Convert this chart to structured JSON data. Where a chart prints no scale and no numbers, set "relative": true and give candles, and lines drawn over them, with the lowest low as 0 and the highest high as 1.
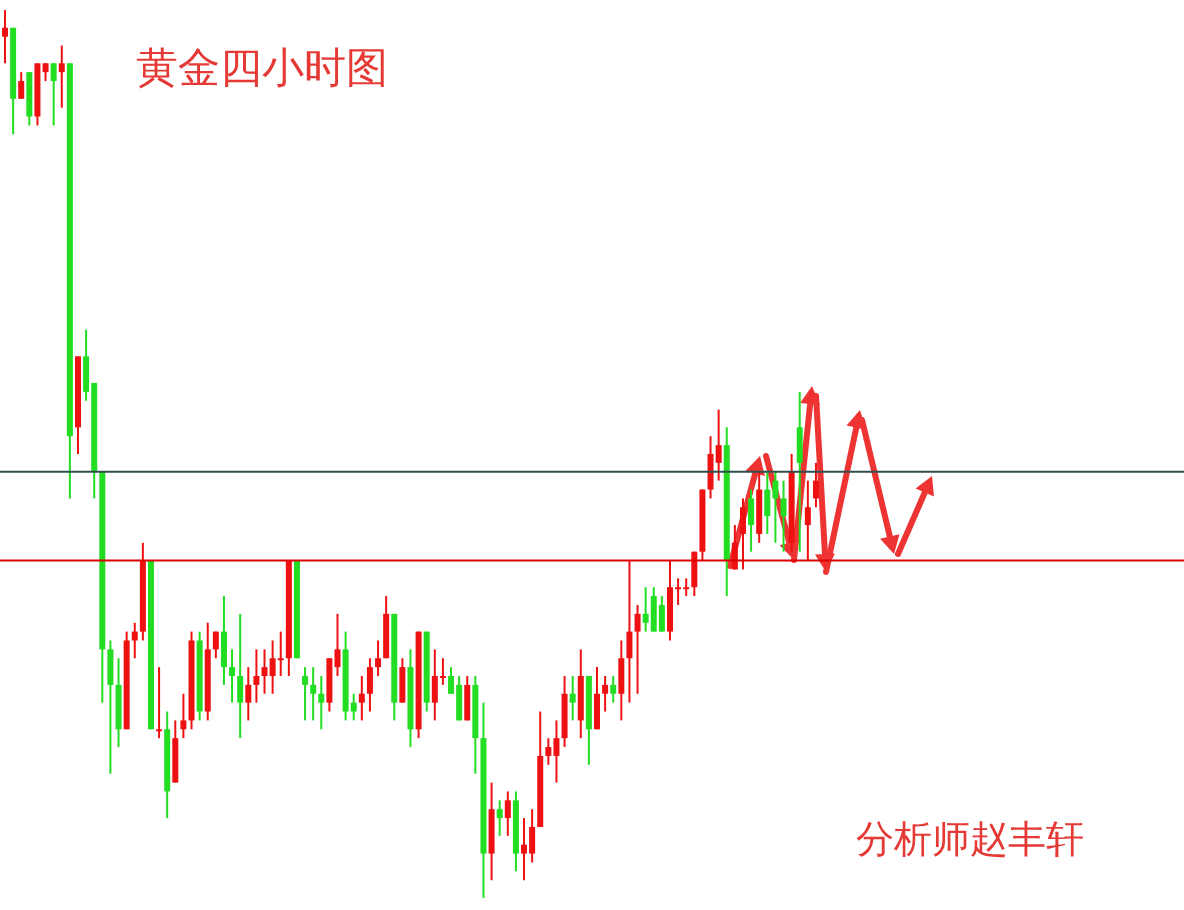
{
  "chart_data": {
    "type": "candlestick",
    "title": "黄金四小时图",
    "annotations": [
      "分析师赵丰轩"
    ],
    "relative": true,
    "categories": [
      null,
      null,
      null,
      null,
      null,
      null,
      null,
      null,
      null,
      null,
      null,
      null,
      null,
      null,
      null,
      null,
      null,
      null,
      null,
      null,
      null,
      null,
      null,
      null,
      null,
      null,
      null,
      null,
      null,
      null,
      null,
      null,
      null,
      null,
      null,
      null,
      null,
      null,
      null,
      null,
      null,
      null,
      null,
      null,
      null,
      null,
      null,
      null,
      null,
      null,
      null,
      null,
      null,
      null,
      null,
      null,
      null,
      null,
      null,
      null,
      null,
      null,
      null,
      null,
      null,
      null,
      null,
      null,
      null,
      null,
      null,
      null,
      null,
      null,
      null,
      null,
      null,
      null,
      null,
      null,
      null,
      null,
      null,
      null,
      null,
      null,
      null,
      null,
      null,
      null,
      null,
      null,
      null,
      null,
      null,
      null,
      null,
      null,
      null,
      null,
      null,
      null,
      null,
      null,
      null,
      null,
      null,
      null,
      null,
      null,
      null,
      null,
      null,
      null,
      null,
      null,
      null,
      null,
      null,
      null,
      null,
      null,
      null,
      null,
      null,
      null,
      null,
      null,
      null,
      null,
      null,
      null,
      null,
      null,
      null,
      null,
      null,
      null,
      null,
      null,
      null,
      null,
      null,
      null,
      null,
      null
    ],
    "ohlc": [
      [
        0.97,
        1,
        0.94,
        0.98
      ],
      [
        0.98,
        0.98,
        0.86,
        0.9
      ],
      [
        0.9,
        0.93,
        0.9,
        0.92
      ],
      [
        0.93,
        0.93,
        0.87,
        0.88
      ],
      [
        0.88,
        0.94,
        0.87,
        0.94
      ],
      [
        0.93,
        0.94,
        0.92,
        0.94
      ],
      [
        0.94,
        0.94,
        0.87,
        0.92
      ],
      [
        0.93,
        0.96,
        0.89,
        0.94
      ],
      [
        0.94,
        0.94,
        0.45,
        0.52
      ],
      [
        0.53,
        0.61,
        0.5,
        0.61
      ],
      [
        0.61,
        0.64,
        0.56,
        0.57
      ],
      [
        0.58,
        0.58,
        0.45,
        0.48
      ],
      [
        0.48,
        0.48,
        0.22,
        0.28
      ],
      [
        0.28,
        0.29,
        0.14,
        0.24
      ],
      [
        0.24,
        0.27,
        0.17,
        0.19
      ],
      [
        0.19,
        0.3,
        0.19,
        0.29
      ],
      [
        0.29,
        0.31,
        0.27,
        0.3
      ],
      [
        0.3,
        0.4,
        0.29,
        0.38
      ],
      [
        0.38,
        0.38,
        0.19,
        0.19
      ],
      [
        0.19,
        0.26,
        0.18,
        0.19
      ],
      [
        0.19,
        0.21,
        0.09,
        0.12
      ],
      [
        0.13,
        0.2,
        0.13,
        0.18
      ],
      [
        0.19,
        0.23,
        0.18,
        0.2
      ],
      [
        0.2,
        0.3,
        0.19,
        0.29
      ],
      [
        0.29,
        0.3,
        0.2,
        0.21
      ],
      [
        0.21,
        0.31,
        0.2,
        0.28
      ],
      [
        0.28,
        0.3,
        0.27,
        0.3
      ],
      [
        0.3,
        0.34,
        0.24,
        0.26
      ],
      [
        0.26,
        0.28,
        0.22,
        0.25
      ],
      [
        0.25,
        0.32,
        0.18,
        0.22
      ],
      [
        0.22,
        0.26,
        0.2,
        0.24
      ],
      [
        0.24,
        0.28,
        0.22,
        0.25
      ],
      [
        0.25,
        0.28,
        0.23,
        0.26
      ],
      [
        0.25,
        0.29,
        0.23,
        0.27
      ],
      [
        0.27,
        0.3,
        0.25,
        0.27
      ],
      [
        0.27,
        0.38,
        0.25,
        0.38
      ],
      [
        0.38,
        0.38,
        0.27,
        0.27
      ],
      [
        0.25,
        0.26,
        0.2,
        0.24
      ],
      [
        0.24,
        0.26,
        0.2,
        0.23
      ],
      [
        0.23,
        0.25,
        0.19,
        0.22
      ],
      [
        0.22,
        0.27,
        0.21,
        0.27
      ],
      [
        0.26,
        0.32,
        0.25,
        0.28
      ],
      [
        0.28,
        0.3,
        0.2,
        0.21
      ],
      [
        0.22,
        0.23,
        0.2,
        0.21
      ],
      [
        0.22,
        0.25,
        0.2,
        0.23
      ],
      [
        0.23,
        0.27,
        0.21,
        0.26
      ],
      [
        0.26,
        0.29,
        0.25,
        0.27
      ],
      [
        0.27,
        0.34,
        0.27,
        0.32
      ],
      [
        0.32,
        0.32,
        0.2,
        0.22
      ],
      [
        0.22,
        0.27,
        0.22,
        0.26
      ],
      [
        0.26,
        0.28,
        0.17,
        0.19
      ],
      [
        0.19,
        0.3,
        0.18,
        0.3
      ],
      [
        0.3,
        0.3,
        0.21,
        0.22
      ],
      [
        0.22,
        0.28,
        0.2,
        0.25
      ],
      [
        0.25,
        0.27,
        0.24,
        0.25
      ],
      [
        0.25,
        0.26,
        0.23,
        0.23
      ],
      [
        0.24,
        0.25,
        0.2,
        0.2
      ],
      [
        0.2,
        0.25,
        0.2,
        0.24
      ],
      [
        0.24,
        0.25,
        0.14,
        0.18
      ],
      [
        0.18,
        0.22,
        0,
        0.05
      ],
      [
        0.05,
        0.13,
        0.02,
        0.1
      ],
      [
        0.1,
        0.11,
        0.07,
        0.09
      ],
      [
        0.09,
        0.12,
        0.07,
        0.11
      ],
      [
        0.11,
        0.12,
        0.03,
        0.05
      ],
      [
        0.05,
        0.09,
        0.02,
        0.06
      ],
      [
        0.05,
        0.1,
        0.04,
        0.08
      ],
      [
        0.08,
        0.21,
        0.08,
        0.16
      ],
      [
        0.16,
        0.18,
        0.15,
        0.17
      ],
      [
        0.16,
        0.2,
        0.13,
        0.18
      ],
      [
        0.18,
        0.25,
        0.17,
        0.23
      ],
      [
        0.23,
        0.25,
        0.2,
        0.22
      ],
      [
        0.2,
        0.28,
        0.18,
        0.25
      ],
      [
        0.25,
        0.25,
        0.15,
        0.19
      ],
      [
        0.19,
        0.26,
        0.19,
        0.23
      ],
      [
        0.23,
        0.25,
        0.21,
        0.24
      ],
      [
        0.24,
        0.25,
        0.22,
        0.23
      ],
      [
        0.23,
        0.29,
        0.2,
        0.27
      ],
      [
        0.27,
        0.38,
        0.22,
        0.3
      ],
      [
        0.3,
        0.33,
        0.23,
        0.32
      ],
      [
        0.32,
        0.35,
        0.3,
        0.31
      ],
      [
        0.34,
        0.35,
        0.3,
        0.3
      ],
      [
        0.33,
        0.34,
        0.3,
        0.3
      ],
      [
        0.3,
        0.38,
        0.29,
        0.35
      ],
      [
        0.35,
        0.36,
        0.33,
        0.35
      ],
      [
        0.35,
        0.36,
        0.34,
        0.35
      ],
      [
        0.35,
        0.39,
        0.34,
        0.39
      ],
      [
        0.39,
        0.46,
        0.38,
        0.46
      ],
      [
        0.46,
        0.52,
        0.45,
        0.5
      ],
      [
        0.49,
        0.55,
        0.47,
        0.51
      ],
      [
        0.51,
        0.53,
        0.34,
        0.38
      ],
      [
        0.37,
        0.42,
        0.37,
        0.4
      ],
      [
        0.41,
        0.45,
        0.37,
        0.44
      ],
      [
        0.45,
        0.46,
        0.39,
        0.42
      ],
      [
        0.41,
        0.48,
        0.4,
        0.46
      ],
      [
        0.46,
        0.48,
        0.41,
        0.43
      ],
      [
        0.47,
        0.48,
        0.4,
        0.45
      ],
      [
        0.45,
        0.47,
        0.39,
        0.43
      ],
      [
        0.4,
        0.5,
        0.39,
        0.48
      ],
      [
        0.53,
        0.57,
        0.39,
        0.49
      ],
      [
        0.42,
        0.47,
        0.38,
        0.44
      ],
      [
        0.45,
        0.49,
        0.44,
        0.47
      ],
      null,
      null,
      null,
      null,
      null,
      null,
      null,
      null,
      null,
      null,
      null,
      null,
      null,
      null,
      null,
      null,
      null,
      null,
      null,
      null,
      null,
      null,
      null,
      null,
      null,
      null,
      null,
      null,
      null,
      null,
      null,
      null,
      null,
      null,
      null,
      null,
      null,
      null,
      null,
      null,
      null,
      null,
      null,
      null,
      null
    ],
    "ref_lines": [
      {
        "axis": "y",
        "value": 0.48,
        "color": "#2f4f4f"
      },
      {
        "axis": "y",
        "value": 0.38,
        "color": "#dd0000"
      }
    ]
  }
}
